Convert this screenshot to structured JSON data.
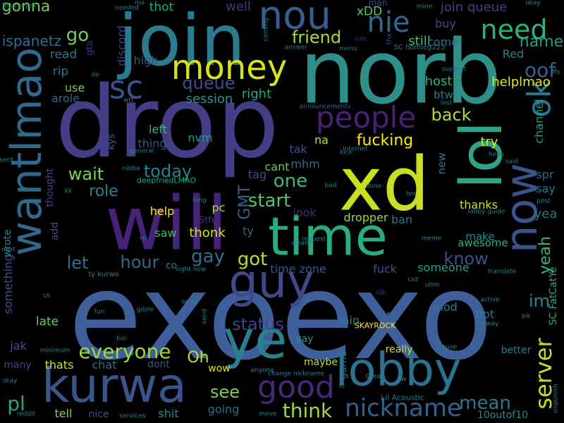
{
  "words": [
    {
      "t": "exoexo",
      "c": "#3f5f9a"
    },
    {
      "t": "drop",
      "c": "#433e85"
    },
    {
      "t": "norb",
      "c": "#2e8f8a"
    },
    {
      "t": "join",
      "c": "#2b7b8e"
    },
    {
      "t": "xd",
      "c": "#c8e020"
    },
    {
      "t": "lol",
      "c": "#31a385"
    },
    {
      "t": "will",
      "c": "#462379"
    },
    {
      "t": "time",
      "c": "#27ad81"
    },
    {
      "t": "wantlmao",
      "c": "#30698e"
    },
    {
      "t": "kurwa",
      "c": "#39558c"
    },
    {
      "t": "now",
      "c": "#3b528b"
    },
    {
      "t": "ok",
      "c": "#2a768e"
    },
    {
      "t": "lobby",
      "c": "#2c718e"
    },
    {
      "t": "guy",
      "c": "#3e4989"
    },
    {
      "t": "ye",
      "c": "#26818e"
    },
    {
      "t": "money",
      "c": "#d8e219"
    },
    {
      "t": "nou",
      "c": "#355f8d"
    },
    {
      "t": "sc",
      "c": "#3a538b"
    },
    {
      "t": "people",
      "c": "#482173"
    },
    {
      "t": "nie",
      "c": "#31688e"
    },
    {
      "t": "need",
      "c": "#2db27d"
    },
    {
      "t": "gonna",
      "c": "#6ece58"
    },
    {
      "t": "go",
      "c": "#6ece58"
    },
    {
      "t": "friend",
      "c": "#a5db36"
    },
    {
      "t": "queue",
      "c": "#3e4c8a"
    },
    {
      "t": "good",
      "c": "#482878"
    },
    {
      "t": "nickname",
      "c": "#33628d"
    },
    {
      "t": "everyone",
      "c": "#9dd93b"
    },
    {
      "t": "server",
      "c": "#c2df23"
    },
    {
      "t": "yeah",
      "c": "#35b779"
    },
    {
      "t": "hour",
      "c": "#31688e"
    },
    {
      "t": "let",
      "c": "#2c728e"
    },
    {
      "t": "gay",
      "c": "#2d708e"
    },
    {
      "t": "got",
      "c": "#b5de2b"
    },
    {
      "t": "start",
      "c": "#4ec36b"
    },
    {
      "t": "one",
      "c": "#3aba76"
    },
    {
      "t": "wait",
      "c": "#7ad151"
    },
    {
      "t": "today",
      "c": "#26828e"
    },
    {
      "t": "role",
      "c": "#25838e"
    },
    {
      "t": "back",
      "c": "#addc30"
    },
    {
      "t": "know",
      "c": "#3b528b"
    },
    {
      "t": "im",
      "c": "#24868e"
    },
    {
      "t": "name",
      "c": "#1f9e89"
    },
    {
      "t": "oof",
      "c": "#34618d"
    },
    {
      "t": "status",
      "c": "#404387"
    },
    {
      "t": "Oh",
      "c": "#bddf26"
    },
    {
      "t": "see",
      "c": "#7ad151"
    },
    {
      "t": "think",
      "c": "#a0da39"
    },
    {
      "t": "mean",
      "c": "#2a788e"
    },
    {
      "t": "pl",
      "c": "#26a784"
    },
    {
      "t": "fucking",
      "c": "#fde725"
    },
    {
      "t": "GMT",
      "c": "#33638d"
    },
    {
      "t": "try",
      "c": "#dde318"
    },
    {
      "t": "xDD",
      "c": "#5ec962"
    },
    {
      "t": "still",
      "c": "#3dbc74"
    },
    {
      "t": "buy",
      "c": "#3e4c8a"
    },
    {
      "t": "come",
      "c": "#2e6e8e"
    },
    {
      "t": "join queue",
      "c": "#424086"
    },
    {
      "t": "man",
      "c": "#42488a"
    },
    {
      "t": "session",
      "c": "#1f978b"
    },
    {
      "t": "right",
      "c": "#22a884"
    },
    {
      "t": "thot",
      "c": "#22a884"
    },
    {
      "t": "discord",
      "c": "#424086"
    },
    {
      "t": "read",
      "c": "#2a7a8e"
    },
    {
      "t": "rip",
      "c": "#2a768e"
    },
    {
      "t": "use",
      "c": "#6ece58"
    },
    {
      "t": "arole",
      "c": "#33638d"
    },
    {
      "t": "high",
      "c": "#3b528b"
    },
    {
      "t": "ispanetz",
      "c": "#2d708e"
    },
    {
      "t": "well",
      "c": "#43377f"
    },
    {
      "t": "host",
      "c": "#2db27d"
    },
    {
      "t": "btw",
      "c": "#2a7a8e"
    },
    {
      "t": "helplmao",
      "c": "#e2e418"
    },
    {
      "t": "Red",
      "c": "#25848e"
    },
    {
      "t": "channel",
      "c": "#1f9e89"
    },
    {
      "t": "left",
      "c": "#38b977"
    },
    {
      "t": "thing",
      "c": "#3b528b"
    },
    {
      "t": "nvm",
      "c": "#1f9e89"
    },
    {
      "t": "tak",
      "c": "#3b528b"
    },
    {
      "t": "na",
      "c": "#c2df23"
    },
    {
      "t": "mhm",
      "c": "#2f6c8e"
    },
    {
      "t": "cant",
      "c": "#66cb5d"
    },
    {
      "t": "tag",
      "c": "#3e4c8a"
    },
    {
      "t": "new",
      "c": "#2a7a8e"
    },
    {
      "t": "spr",
      "c": "#31688e"
    },
    {
      "t": "say",
      "c": "#2a788e"
    },
    {
      "t": "yea",
      "c": "#2a788e"
    },
    {
      "t": "thanks",
      "c": "#d0e11c"
    },
    {
      "t": "make",
      "c": "#218f8d"
    },
    {
      "t": "awesome",
      "c": "#2ab07f"
    },
    {
      "t": "dropper",
      "c": "#99d83d"
    },
    {
      "t": "ban",
      "c": "#2a768e"
    },
    {
      "t": "look",
      "c": "#472a7a"
    },
    {
      "t": "help",
      "c": "#fde725"
    },
    {
      "t": "pc",
      "c": "#a0da39"
    },
    {
      "t": "ty",
      "c": "#33638d"
    },
    {
      "t": "thonk",
      "c": "#d5e21a"
    },
    {
      "t": "saw",
      "c": "#3dbc74"
    },
    {
      "t": "Stfu",
      "c": "#463480"
    },
    {
      "t": "kys",
      "c": "#3a548c"
    },
    {
      "t": "co",
      "c": "#2a7a8e"
    },
    {
      "t": "time zone",
      "c": "#38598c"
    },
    {
      "t": "fuck",
      "c": "#3b528b"
    },
    {
      "t": "someone",
      "c": "#1f9e89"
    },
    {
      "t": "mod",
      "c": "#2a788e"
    },
    {
      "t": "bot",
      "c": "#2a788e"
    },
    {
      "t": "ur",
      "c": "#2e6e8e"
    },
    {
      "t": "min",
      "c": "#2a788e"
    },
    {
      "t": "late",
      "c": "#65cb5e"
    },
    {
      "t": "jak",
      "c": "#3b528b"
    },
    {
      "t": "many",
      "c": "#3f4788"
    },
    {
      "t": "thats",
      "c": "#cae11f"
    },
    {
      "t": "chat",
      "c": "#2f6c8e"
    },
    {
      "t": "dont",
      "c": "#3b528b"
    },
    {
      "t": "wow",
      "c": "#e5e419"
    },
    {
      "t": "yay",
      "c": "#1f958b"
    },
    {
      "t": "maybe",
      "c": "#bddf26"
    },
    {
      "t": "really",
      "c": "#c8e020"
    },
    {
      "t": "better",
      "c": "#2a788e"
    },
    {
      "t": "game",
      "c": "#2f6c8e"
    },
    {
      "t": "tell",
      "c": "#81d34d"
    },
    {
      "t": "nice",
      "c": "#3b528b"
    },
    {
      "t": "shit",
      "c": "#24878e"
    },
    {
      "t": "going",
      "c": "#2e6e8e"
    },
    {
      "t": "10outof10",
      "c": "#23898e"
    },
    {
      "t": "SC FatCatYe",
      "c": "#25ac82"
    },
    {
      "t": "something",
      "c": "#3b528b"
    },
    {
      "t": "wrote",
      "c": "#26828e"
    },
    {
      "t": "add",
      "c": "#3e4c8a"
    },
    {
      "t": "thought",
      "c": "#414487"
    },
    {
      "t": "deepfriedLMAO",
      "c": "#22a884"
    },
    {
      "t": "SKAYROCK",
      "c": "#fde725"
    },
    {
      "t": "Lil Acoustic",
      "c": "#2a788e"
    },
    {
      "t": "SC homieg223",
      "c": "#2a788e"
    },
    {
      "t": "gta",
      "c": "#46307e"
    },
    {
      "t": "thx",
      "c": "#3e4c8a"
    },
    {
      "t": "rule",
      "c": "#482475"
    },
    {
      "t": "answer",
      "c": "#2a788e"
    },
    {
      "t": "menu",
      "c": "#2a788e"
    },
    {
      "t": "support",
      "c": "#2a788e"
    },
    {
      "t": "last",
      "c": "#2a788e"
    },
    {
      "t": "announcements",
      "c": "#31688e"
    },
    {
      "t": "internet",
      "c": "#2a788e"
    },
    {
      "t": "kick",
      "c": "#2a788e"
    },
    {
      "t": "hello",
      "c": "#2a788e"
    },
    {
      "t": "said",
      "c": "#2a788e"
    },
    {
      "t": "post",
      "c": "#26828e"
    },
    {
      "t": "lobby guide",
      "c": "#26828e"
    },
    {
      "t": "done",
      "c": "#26828e"
    },
    {
      "t": "bad",
      "c": "#26828e"
    },
    {
      "t": "request",
      "c": "#26828e"
    },
    {
      "t": "steam",
      "c": "#26828e"
    },
    {
      "t": "meme",
      "c": "#26828e"
    },
    {
      "t": "translate",
      "c": "#26828e"
    },
    {
      "t": "right now",
      "c": "#26828e"
    },
    {
      "t": "ty kurwo",
      "c": "#26828e"
    },
    {
      "t": "next",
      "c": "#26828e"
    },
    {
      "t": "us",
      "c": "#26828e"
    },
    {
      "t": "fun",
      "c": "#26828e"
    },
    {
      "t": "gdzie",
      "c": "#26828e"
    },
    {
      "t": "sorry",
      "c": "#26828e"
    },
    {
      "t": "send",
      "c": "#26828e"
    },
    {
      "t": "ja",
      "c": "#26828e"
    },
    {
      "t": "idk",
      "c": "#482878"
    },
    {
      "t": "cuz",
      "c": "#26828e"
    },
    {
      "t": "uhm",
      "c": "#26828e"
    },
    {
      "t": "active",
      "c": "#26828e"
    },
    {
      "t": "anyway",
      "c": "#26828e"
    },
    {
      "t": "pic",
      "c": "#26828e"
    },
    {
      "t": "boi",
      "c": "#26828e"
    },
    {
      "t": "minimum",
      "c": "#26828e"
    },
    {
      "t": "skay",
      "c": "#26828e"
    },
    {
      "t": "anyone",
      "c": "#26828e"
    },
    {
      "t": "change nickname",
      "c": "#26828e"
    },
    {
      "t": "hi",
      "c": "#26828e"
    },
    {
      "t": "Great",
      "c": "#26828e"
    },
    {
      "t": "dw",
      "c": "#26828e"
    },
    {
      "t": "cause",
      "c": "#26828e"
    },
    {
      "t": "reddit",
      "c": "#26828e"
    },
    {
      "t": "services",
      "c": "#26828e"
    },
    {
      "t": "move",
      "c": "#26828e"
    },
    {
      "t": "unpunish",
      "c": "#26828e"
    },
    {
      "t": "blurryeyes",
      "c": "#26828e"
    },
    {
      "t": "needed",
      "c": "#26828e"
    },
    {
      "t": "ma",
      "c": "#26828e"
    },
    {
      "t": "mine",
      "c": "#26828e"
    },
    {
      "t": "okay",
      "c": "#26828e"
    },
    {
      "t": "coming",
      "c": "#26828e"
    },
    {
      "t": "de",
      "c": "#26828e"
    },
    {
      "t": "wtf",
      "c": "#26828e"
    },
    {
      "t": "general",
      "c": "#26828e"
    },
    {
      "t": "nibba",
      "c": "#26828e"
    },
    {
      "t": "sent",
      "c": "#26828e"
    },
    {
      "t": "kk",
      "c": "#26828e"
    },
    {
      "t": "long",
      "c": "#26828e"
    },
    {
      "t": "ffs",
      "c": "#26828e"
    },
    {
      "t": "rn",
      "c": "#26828e"
    },
    {
      "t": "hm",
      "c": "#26828e"
    }
  ]
}
